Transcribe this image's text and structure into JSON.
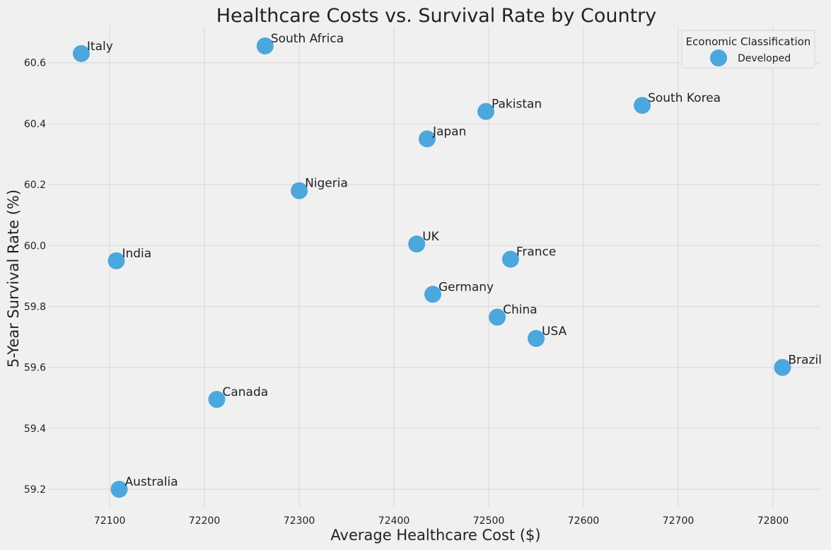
{
  "chart_data": {
    "type": "scatter",
    "title": "Healthcare Costs vs. Survival Rate by Country",
    "xlabel": "Average Healthcare Cost ($)",
    "ylabel": "5-Year Survival Rate (%)",
    "xlim": [
      72035,
      72850
    ],
    "ylim": [
      59.14,
      60.72
    ],
    "x_ticks": [
      72100,
      72200,
      72300,
      72400,
      72500,
      72600,
      72700,
      72800
    ],
    "y_ticks": [
      59.2,
      59.4,
      59.6,
      59.8,
      60.0,
      60.2,
      60.4,
      60.6
    ],
    "grid": true,
    "marker_color": "#3a9fd9",
    "legend": {
      "title": "Economic Classification",
      "placement": "top-right",
      "entries": [
        "Developed"
      ]
    },
    "series": [
      {
        "name": "Developed",
        "points": [
          {
            "label": "Italy",
            "x": 72070,
            "y": 60.63
          },
          {
            "label": "South Africa",
            "x": 72264,
            "y": 60.655
          },
          {
            "label": "Pakistan",
            "x": 72497,
            "y": 60.44
          },
          {
            "label": "South Korea",
            "x": 72662,
            "y": 60.46
          },
          {
            "label": "Japan",
            "x": 72435,
            "y": 60.35
          },
          {
            "label": "Nigeria",
            "x": 72300,
            "y": 60.18
          },
          {
            "label": "UK",
            "x": 72424,
            "y": 60.005
          },
          {
            "label": "India",
            "x": 72107,
            "y": 59.95
          },
          {
            "label": "France",
            "x": 72523,
            "y": 59.955
          },
          {
            "label": "Germany",
            "x": 72441,
            "y": 59.84
          },
          {
            "label": "China",
            "x": 72509,
            "y": 59.765
          },
          {
            "label": "USA",
            "x": 72550,
            "y": 59.695
          },
          {
            "label": "Brazil",
            "x": 72810,
            "y": 59.6
          },
          {
            "label": "Canada",
            "x": 72213,
            "y": 59.495
          },
          {
            "label": "Australia",
            "x": 72110,
            "y": 59.2
          }
        ]
      }
    ]
  }
}
